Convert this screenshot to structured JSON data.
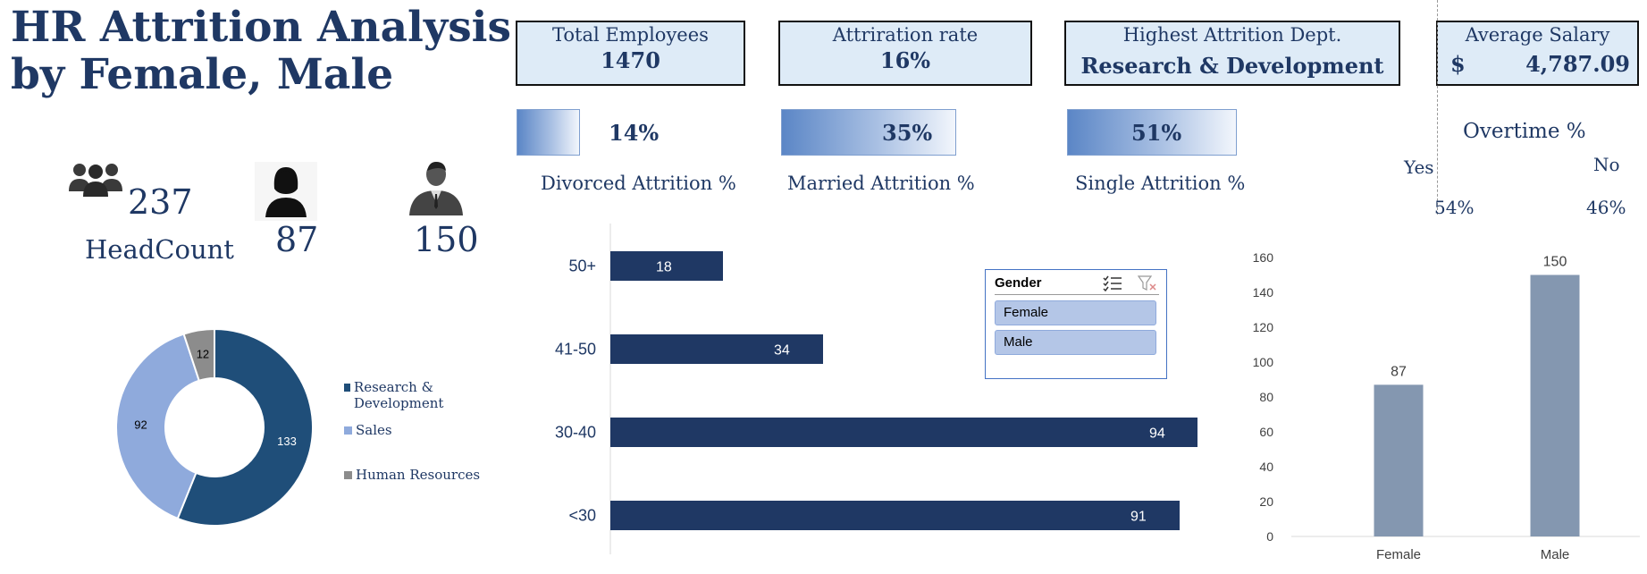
{
  "title": {
    "line1": "HR Attrition Analysis",
    "line2": "by Female, Male"
  },
  "kpis": {
    "total_employees": {
      "label": "Total Employees",
      "value": "1470"
    },
    "attrition_rate": {
      "label": "Attriration rate",
      "value": "16%"
    },
    "highest_dept": {
      "label": "Highest Attrition Dept.",
      "value": "Research & Development"
    },
    "avg_salary": {
      "label": "Average Salary",
      "currency": "$",
      "value": "4,787.09"
    }
  },
  "marital": {
    "divorced": {
      "value": "14%",
      "label": "Divorced Attrition %",
      "fraction": 0.14
    },
    "married": {
      "value": "35%",
      "label": "Married Attrition %",
      "fraction": 0.35
    },
    "single": {
      "value": "51%",
      "label": "Single Attrition %",
      "fraction": 0.51
    }
  },
  "overtime": {
    "title": "Overtime %",
    "yes_label": "Yes",
    "no_label": "No",
    "yes_value": "54%",
    "no_value": "46%"
  },
  "headcount": {
    "total": "237",
    "label": "HeadCount",
    "female": "87",
    "male": "150"
  },
  "icons": {
    "group": "group-icon",
    "female": "female-user-icon",
    "male": "male-user-icon"
  },
  "slicer": {
    "title": "Gender",
    "options": [
      "Female",
      "Male"
    ]
  },
  "colors": {
    "navy": "#1f3864",
    "rd": "#1f4e79",
    "sales": "#8faadc",
    "hr": "#8c8c8c",
    "bar": "#1f3864",
    "column": "#8497b0",
    "kpi_fill": "#deebf7"
  },
  "chart_data": [
    {
      "type": "pie",
      "variant": "donut",
      "categories": [
        "Research & Development",
        "Sales",
        "Human Resources"
      ],
      "values": [
        133,
        92,
        12
      ],
      "legend": "right"
    },
    {
      "type": "bar",
      "orientation": "horizontal",
      "categories": [
        "50+",
        "41-50",
        "30-40",
        "<30"
      ],
      "values": [
        18,
        34,
        94,
        91
      ],
      "xlim": [
        0,
        100
      ],
      "grid": false
    },
    {
      "type": "bar",
      "categories": [
        "Female",
        "Male"
      ],
      "values": [
        87,
        150
      ],
      "ylim": [
        0,
        160
      ],
      "yticks": [
        "0",
        "20",
        "40",
        "60",
        "80",
        "100",
        "120",
        "140",
        "160"
      ],
      "grid": false
    }
  ]
}
